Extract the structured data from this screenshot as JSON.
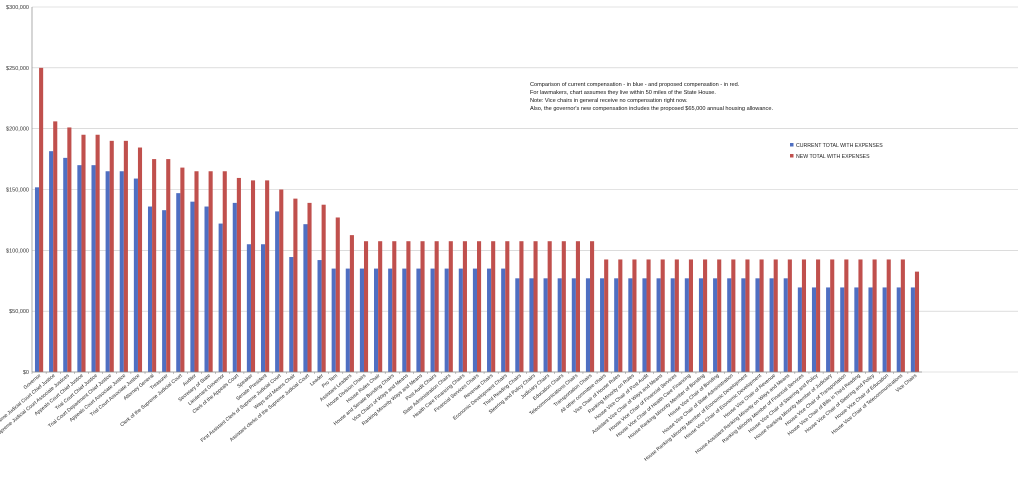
{
  "chart_data": {
    "type": "bar",
    "ylim": [
      0,
      300000
    ],
    "y_ticks": [
      "$0",
      "$50,000",
      "$100,000",
      "$150,000",
      "$200,000",
      "$250,000",
      "$300,000"
    ],
    "grid": true,
    "legend_position": "right",
    "annotation": [
      "Comparison  of current compensation  - in blue - and proposed compensation - in red.",
      "For lawmakers, chart assumes they live within 50 miles of the State House.",
      "Note: Vice chairs in general receive no compensation right now.",
      "Also,  the governor's new compensation includes the proposed $65,000 annual housing allowance."
    ],
    "categories": [
      "Governor",
      "Supreme Judicial Court Chief Justice",
      "Supreme Judicial Court Associate Justices",
      "Appeals Court Chief Justice",
      "Trial Court Chief Justice",
      "Trial Court Department Chief Justice",
      "Appeals Court Associate Justice",
      "Trial Court Associate Justice",
      "Attorney General",
      "Treasurer",
      "Clerk of the Supreme Judicial Court",
      "Auditor",
      "Secretary of State",
      "Lieutenant Governor",
      "Clerk of the Appeals Court",
      "Speaker",
      "Senate President",
      "First Assistant Clerk of Supreme Judicial Court",
      "Ways and Means Chair",
      "Assistant clerks of the Supreme Judicial Court",
      "Leader",
      "Pro Tem",
      "Assistant Leaders",
      "House Division Chairs",
      "House Rules Chair",
      "House and Senate Bonding Chairs",
      "Vice Chairs of Ways and Means",
      "Ranking Minority Ways and Means",
      "Post Audit Chairs",
      "State Administration Chairs",
      "Health Care Financing Chairs",
      "Financial Services Chairs",
      "Revenue Chairs",
      "Economic Development Chairs",
      "Third Reading Chairs",
      "Steering and Policy Chairs",
      "Judiciary Chairs",
      "Education Chairs",
      "Telecommunications Chairs",
      "Transportation Chairs",
      "All other committee chairs",
      "Vice Chair of House Rules",
      "Ranking Minority on Rules",
      "House Vice Chair of Post Audit",
      "Assistant Vice Chair of Ways and Means",
      "House Vice Chair of Financial Services",
      "House Vice Chair of Health Care Financing",
      "House Ranking Minority Member of Bonding",
      "House Vice Chair of Bonding",
      "House Vice Chair of State Administration",
      "House Ranking Minority Member of Economic Development",
      "House Vice Chair of Economic Development",
      "House Vice Chair of Revenue",
      "House Assistant Ranking Minority on Ways and Means",
      "Ranking Minority Member of Financial Services",
      "House Vice Chair of Steering and Policy",
      "House Ranking Minority Member of Judiciary",
      "House Vice Chair of Transportation",
      "House Vice Chair of Bills in Third Reading",
      "House Vice Chair of Steering and Policy",
      "House Vice Chair of Education",
      "House Vice Chair of Telecommunications",
      "Vice Chairs"
    ],
    "series": [
      {
        "name": "CURRENT TOTAL WITH EXPENSES",
        "color": "#4f6fc2",
        "values": [
          151800,
          181500,
          176000,
          170000,
          170000,
          165000,
          165000,
          159000,
          136000,
          133000,
          147000,
          140000,
          136000,
          122000,
          139000,
          105000,
          105000,
          132000,
          94500,
          121500,
          92000,
          85000,
          85000,
          85000,
          85000,
          85000,
          85000,
          85000,
          85000,
          85000,
          85000,
          85000,
          85000,
          85000,
          77000,
          77000,
          77000,
          77000,
          77000,
          77000,
          77000,
          77000,
          77000,
          77000,
          77000,
          77000,
          77000,
          77000,
          77000,
          77000,
          77000,
          77000,
          77000,
          77000,
          69500,
          69500,
          69500,
          69500,
          69500,
          69500,
          69500,
          69500,
          69500
        ]
      },
      {
        "name": "NEW TOTAL WITH EXPENSES",
        "color": "#c0504d",
        "values": [
          250000,
          206000,
          201000,
          195000,
          195000,
          190000,
          190000,
          184500,
          175000,
          175000,
          168000,
          165000,
          165000,
          165000,
          159500,
          157500,
          157500,
          150000,
          142500,
          139000,
          137500,
          127000,
          112500,
          107500,
          107500,
          107500,
          107500,
          107500,
          107500,
          107500,
          107500,
          107500,
          107500,
          107500,
          107500,
          107500,
          107500,
          107500,
          107500,
          107500,
          92500,
          92500,
          92500,
          92500,
          92500,
          92500,
          92500,
          92500,
          92500,
          92500,
          92500,
          92500,
          92500,
          92500,
          92500,
          92500,
          92500,
          92500,
          92500,
          92500,
          92500,
          92500,
          82500
        ]
      }
    ]
  }
}
